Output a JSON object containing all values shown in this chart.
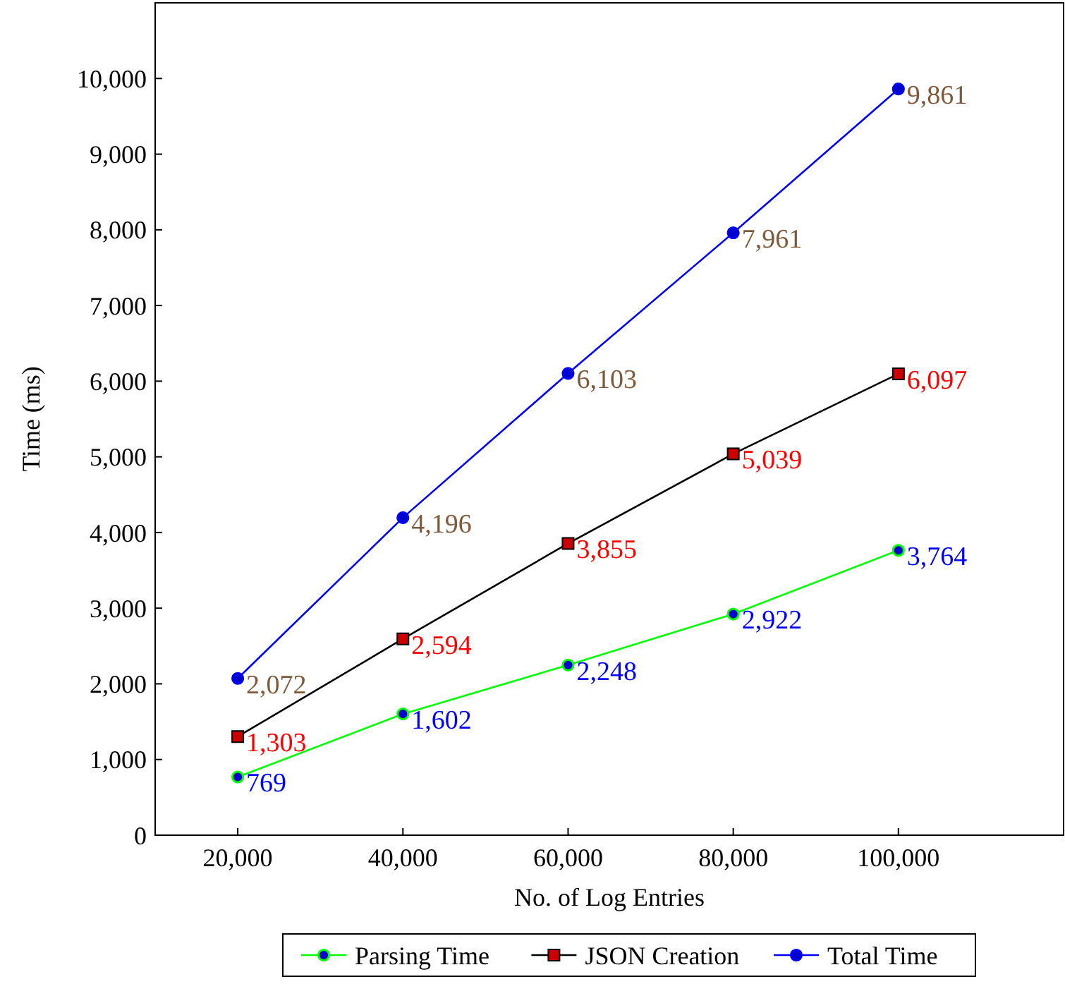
{
  "chart_data": {
    "type": "line",
    "xlabel": "No. of Log Entries",
    "ylabel": "Time (ms)",
    "x": [
      20000,
      40000,
      60000,
      80000,
      100000
    ],
    "series": [
      {
        "name": "Parsing Time",
        "color": "#00ff00",
        "marker": "circle",
        "values": [
          769,
          1602,
          2248,
          2922,
          3764
        ],
        "value_labels": [
          "769",
          "1,602",
          "2,248",
          "2,922",
          "3,764"
        ]
      },
      {
        "name": "JSON Creation",
        "color": "#000000",
        "marker": "square",
        "values": [
          1303,
          2594,
          3855,
          5039,
          6097
        ],
        "value_labels": [
          "1,303",
          "2,594",
          "3,855",
          "5,039",
          "6,097"
        ]
      },
      {
        "name": "Total Time",
        "color": "#0000ff",
        "marker": "circle",
        "values": [
          2072,
          4196,
          6103,
          7961,
          9861
        ],
        "value_labels": [
          "2,072",
          "4,196",
          "6,103",
          "7,961",
          "9,861"
        ]
      }
    ],
    "xlim": [
      10000,
      120000
    ],
    "xticks": [
      {
        "value": 20000,
        "label": "20,000"
      },
      {
        "value": 40000,
        "label": "40,000"
      },
      {
        "value": 60000,
        "label": "60,000"
      },
      {
        "value": 80000,
        "label": "80,000"
      },
      {
        "value": 100000,
        "label": "100,000"
      }
    ],
    "ylim": [
      0,
      11000
    ],
    "yticks": [
      0,
      {
        "value": 1000,
        "label": "1,000"
      },
      {
        "value": 2000,
        "label": "2,000"
      },
      {
        "value": 3000,
        "label": "3,000"
      },
      {
        "value": 4000,
        "label": "4,000"
      },
      {
        "value": 5000,
        "label": "5,000"
      },
      {
        "value": 6000,
        "label": "6,000"
      },
      {
        "value": 7000,
        "label": "7,000"
      },
      {
        "value": 8000,
        "label": "8,000"
      },
      {
        "value": 9000,
        "label": "9,000"
      },
      {
        "value": 10000,
        "label": "10,000"
      }
    ],
    "legend": "bottom"
  }
}
